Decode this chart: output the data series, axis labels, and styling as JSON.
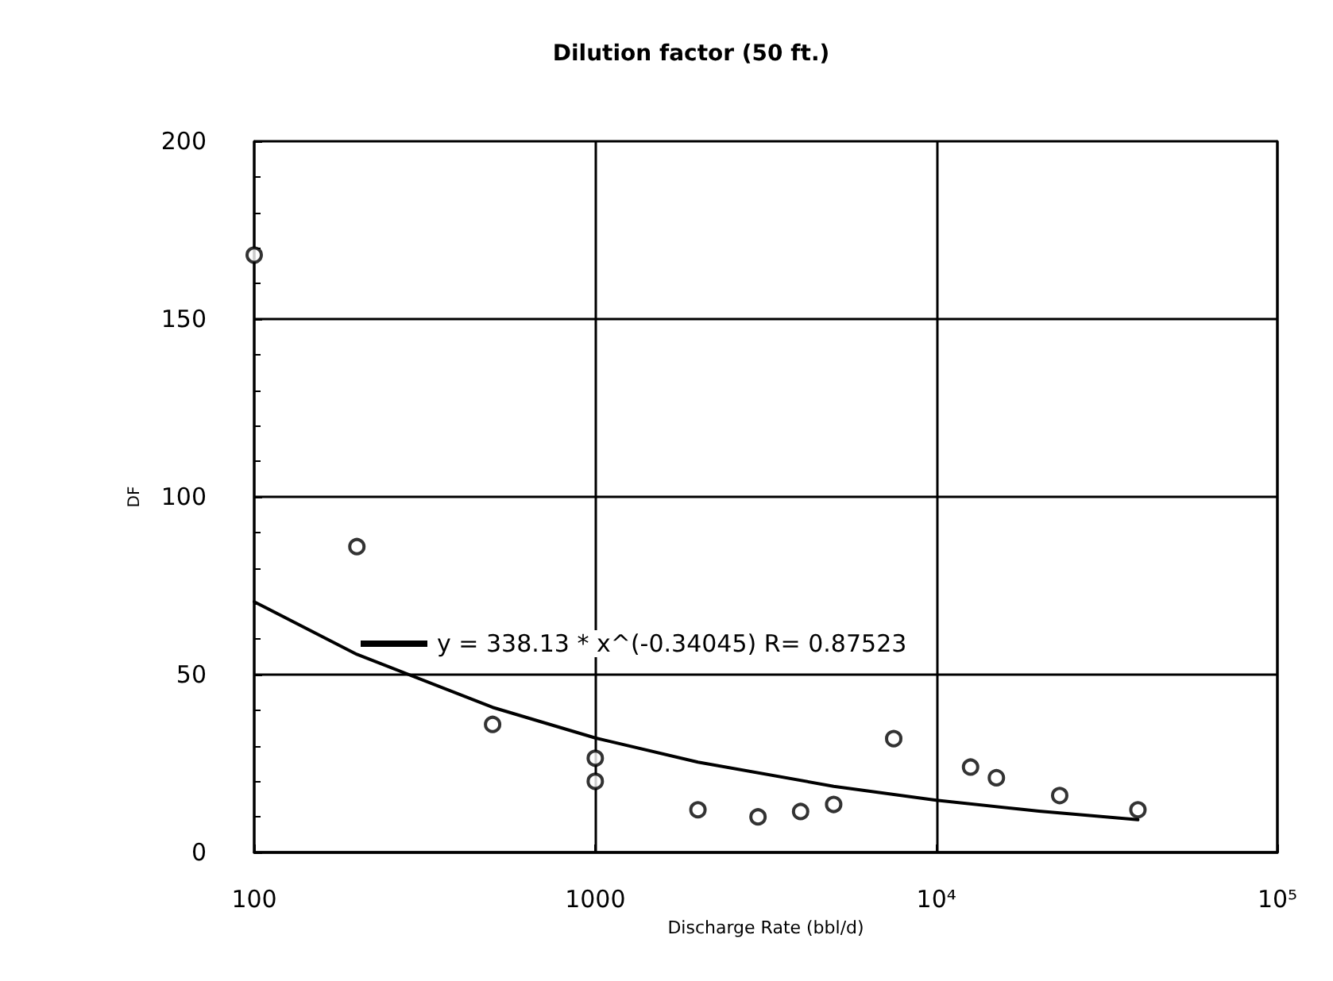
{
  "chart_data": {
    "type": "scatter",
    "title": "Dilution factor (50 ft.)",
    "xlabel": "Discharge Rate (bbl/d)",
    "ylabel": "DF",
    "log": "x",
    "grid": true,
    "marker": "circle",
    "legend": "center left",
    "xlim": [
      100,
      100000
    ],
    "xticks": [
      100,
      1000,
      {
        "value": 10000,
        "label": "10⁴"
      },
      {
        "value": 100000,
        "label": "10⁵"
      }
    ],
    "ylim": [
      0,
      200
    ],
    "yticks": [
      0,
      50,
      100,
      150,
      200
    ],
    "series": [
      {
        "color": "#000000",
        "x": [
          100,
          200,
          500,
          1000,
          1000,
          2000,
          3000,
          4000,
          5000,
          7500,
          12600,
          15000,
          23000,
          39000
        ],
        "values": [
          168,
          86,
          36,
          26.5,
          20,
          12,
          10,
          11.5,
          13.5,
          32,
          24,
          21,
          16,
          12
        ]
      },
      {
        "type": "line",
        "name": "y = 338.13 * x^(-0.34045) R= 0.87523",
        "color": "#000000",
        "marker": "none",
        "x": [
          100,
          200,
          500,
          1000,
          2000,
          5000,
          10000,
          20000,
          39000
        ],
        "values": [
          70.5,
          55.7,
          40.8,
          32.2,
          25.4,
          18.6,
          14.7,
          11.6,
          9.2
        ]
      }
    ]
  }
}
